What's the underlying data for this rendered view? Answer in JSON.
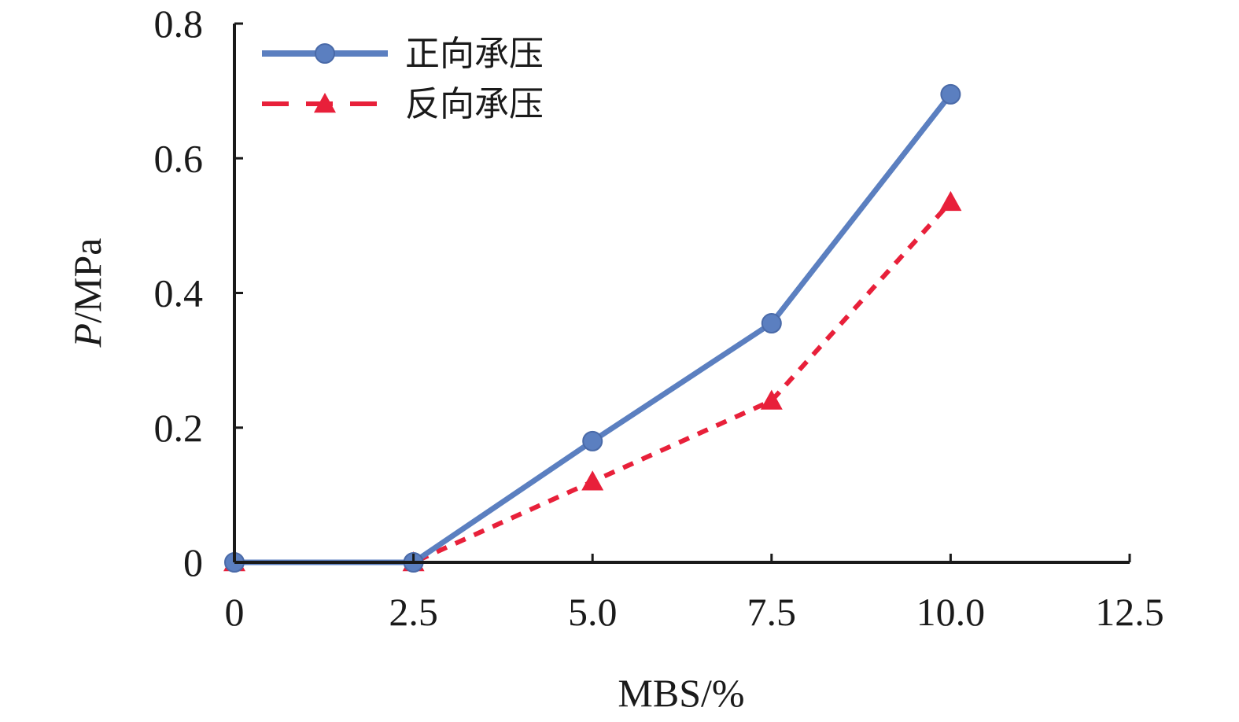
{
  "chart_data": {
    "type": "line",
    "xlabel": "MBS/%",
    "ylabel_italic": "P",
    "ylabel_rest": "/MPa",
    "xlim": [
      0,
      12.5
    ],
    "ylim": [
      0,
      0.8
    ],
    "x_ticks": [
      {
        "value": 0,
        "label": "0"
      },
      {
        "value": 2.5,
        "label": "2.5"
      },
      {
        "value": 5.0,
        "label": "5.0"
      },
      {
        "value": 7.5,
        "label": "7.5"
      },
      {
        "value": 10.0,
        "label": "10.0"
      },
      {
        "value": 12.5,
        "label": "12.5"
      }
    ],
    "y_ticks": [
      {
        "value": 0,
        "label": "0"
      },
      {
        "value": 0.2,
        "label": "0.2"
      },
      {
        "value": 0.4,
        "label": "0.4"
      },
      {
        "value": 0.6,
        "label": "0.6"
      },
      {
        "value": 0.8,
        "label": "0.8"
      }
    ],
    "grid": false,
    "legend_position": "top-left",
    "series": [
      {
        "name": "正向承压",
        "color": "#5b7fc0",
        "line_style": "solid",
        "marker": "circle",
        "x": [
          0,
          2.5,
          5.0,
          7.5,
          10.0
        ],
        "y": [
          0,
          0,
          0.18,
          0.355,
          0.695
        ]
      },
      {
        "name": "反向承压",
        "color": "#e8203a",
        "line_style": "dashed",
        "marker": "triangle",
        "x": [
          0,
          2.5,
          5.0,
          7.5,
          10.0
        ],
        "y": [
          0,
          0,
          0.12,
          0.24,
          0.535
        ]
      }
    ]
  }
}
